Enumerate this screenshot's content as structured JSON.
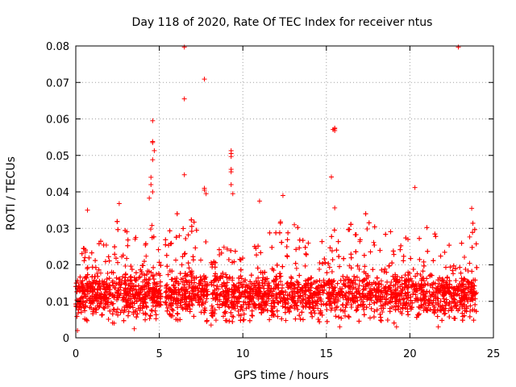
{
  "chart_data": {
    "type": "scatter",
    "title": "Day 118 of 2020, Rate Of TEC Index for receiver ntus",
    "xlabel": "GPS time / hours",
    "ylabel": "ROTI / TECUs",
    "xlim": [
      0,
      25
    ],
    "ylim": [
      0,
      0.08
    ],
    "xticks": [
      0,
      5,
      10,
      15,
      20,
      25
    ],
    "xtick_labels": [
      "0",
      "5",
      "10",
      "15",
      "20",
      "25"
    ],
    "yticks": [
      0,
      0.01,
      0.02,
      0.03,
      0.04,
      0.05,
      0.06,
      0.07,
      0.08
    ],
    "ytick_labels": [
      "0",
      "0.01",
      "0.02",
      "0.03",
      "0.04",
      "0.05",
      "0.06",
      "0.07",
      "0.08"
    ],
    "grid": true,
    "marker": "+",
    "color": "#ff0000",
    "series": [
      {
        "name": "ROTI",
        "note": "dense band of points between ~0.003 and ~0.035 TECU/s spanning 0-24 h; notable outliers listed below",
        "points": [
          [
            4.6,
            0.0595
          ],
          [
            4.6,
            0.0538
          ],
          [
            4.6,
            0.0535
          ],
          [
            4.7,
            0.0513
          ],
          [
            4.6,
            0.0488
          ],
          [
            4.5,
            0.044
          ],
          [
            4.5,
            0.042
          ],
          [
            4.6,
            0.04
          ],
          [
            4.4,
            0.0383
          ],
          [
            6.5,
            0.0797
          ],
          [
            6.5,
            0.0655
          ],
          [
            6.5,
            0.0447
          ],
          [
            7.7,
            0.0709
          ],
          [
            7.7,
            0.041
          ],
          [
            7.7,
            0.0405
          ],
          [
            7.8,
            0.0395
          ],
          [
            9.3,
            0.0513
          ],
          [
            9.3,
            0.0505
          ],
          [
            9.3,
            0.0497
          ],
          [
            9.3,
            0.0462
          ],
          [
            9.3,
            0.0455
          ],
          [
            9.3,
            0.042
          ],
          [
            9.4,
            0.0395
          ],
          [
            15.5,
            0.0575
          ],
          [
            15.5,
            0.0573
          ],
          [
            15.4,
            0.0571
          ],
          [
            15.5,
            0.0568
          ],
          [
            15.3,
            0.0441
          ],
          [
            15.5,
            0.0356
          ],
          [
            20.3,
            0.0412
          ],
          [
            22.9,
            0.0797
          ],
          [
            11.0,
            0.0375
          ],
          [
            12.4,
            0.039
          ],
          [
            2.6,
            0.0368
          ],
          [
            0.7,
            0.035
          ],
          [
            23.7,
            0.0355
          ],
          [
            0.1,
            0.002
          ],
          [
            2.3,
            0.004
          ],
          [
            3.5,
            0.0025
          ],
          [
            8.1,
            0.0035
          ],
          [
            15.8,
            0.003
          ],
          [
            19.2,
            0.003
          ],
          [
            21.7,
            0.003
          ]
        ]
      }
    ],
    "density_envelope": {
      "note": "approximate upper limit of the dense band in each 0.5 h bin (data units)",
      "hours": [
        0,
        0.5,
        1,
        1.5,
        2,
        2.5,
        3,
        3.5,
        4,
        4.5,
        5,
        5.5,
        6,
        6.5,
        7,
        7.5,
        8,
        8.5,
        9,
        9.5,
        10,
        10.5,
        11,
        11.5,
        12,
        12.5,
        13,
        13.5,
        14,
        14.5,
        15,
        15.5,
        16,
        16.5,
        17,
        17.5,
        18,
        18.5,
        19,
        19.5,
        20,
        20.5,
        21,
        21.5,
        22,
        22.5,
        23,
        23.5,
        24
      ],
      "upper": [
        0.021,
        0.025,
        0.026,
        0.027,
        0.028,
        0.033,
        0.03,
        0.028,
        0.026,
        0.033,
        0.025,
        0.03,
        0.034,
        0.036,
        0.032,
        0.033,
        0.022,
        0.024,
        0.027,
        0.03,
        0.024,
        0.029,
        0.027,
        0.031,
        0.034,
        0.037,
        0.033,
        0.03,
        0.027,
        0.028,
        0.026,
        0.03,
        0.029,
        0.032,
        0.036,
        0.034,
        0.03,
        0.033,
        0.029,
        0.027,
        0.028,
        0.027,
        0.031,
        0.033,
        0.027,
        0.026,
        0.032,
        0.034,
        0.03
      ]
    },
    "gaps_hours": [
      [
        5.1,
        5.35
      ],
      [
        7.9,
        8.1
      ]
    ]
  }
}
